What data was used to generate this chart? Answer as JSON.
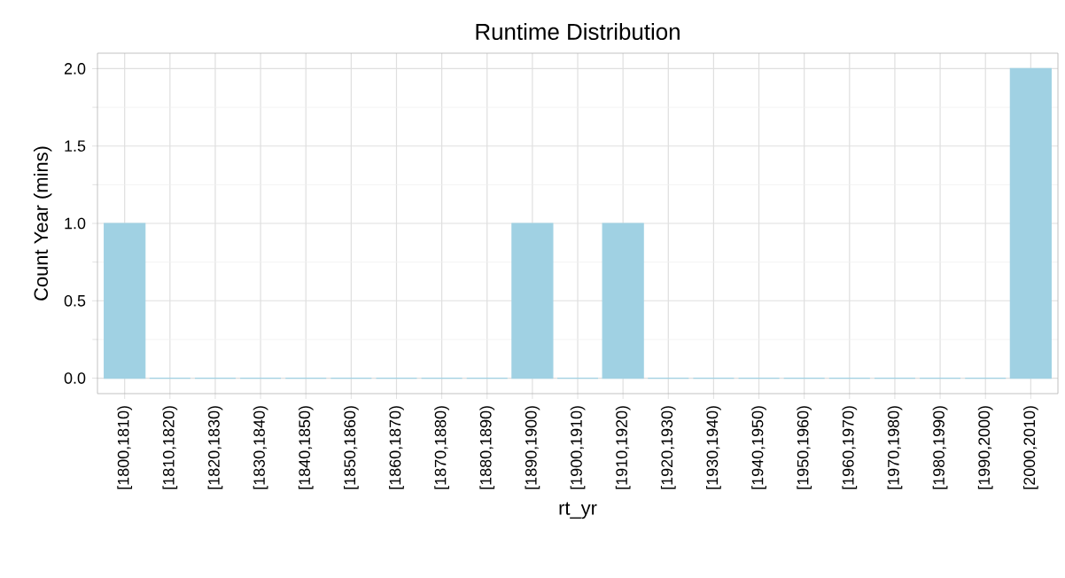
{
  "chart_data": {
    "type": "bar",
    "title": "Runtime Distribution",
    "xlabel": "rt_yr",
    "ylabel": "Count Year (mins)",
    "categories": [
      "[1800,1810)",
      "[1810,1820)",
      "[1820,1830)",
      "[1830,1840)",
      "[1840,1850)",
      "[1850,1860)",
      "[1860,1870)",
      "[1870,1880)",
      "[1880,1890)",
      "[1890,1900)",
      "[1900,1910)",
      "[1910,1920)",
      "[1920,1930)",
      "[1930,1940)",
      "[1940,1950)",
      "[1950,1960)",
      "[1960,1970)",
      "[1970,1980)",
      "[1980,1990)",
      "[1990,2000)",
      "[2000,2010)"
    ],
    "values": [
      1,
      0,
      0,
      0,
      0,
      0,
      0,
      0,
      0,
      1,
      0,
      1,
      0,
      0,
      0,
      0,
      0,
      0,
      0,
      0,
      2
    ],
    "color": "#a0d1e3",
    "ylim": [
      -0.1,
      2.1
    ],
    "yticks": [
      {
        "value": 0,
        "label": "0.0"
      },
      0.5,
      {
        "value": 1,
        "label": "1.0"
      },
      1.5,
      {
        "value": 2,
        "label": "2.0"
      }
    ],
    "grid": true
  }
}
